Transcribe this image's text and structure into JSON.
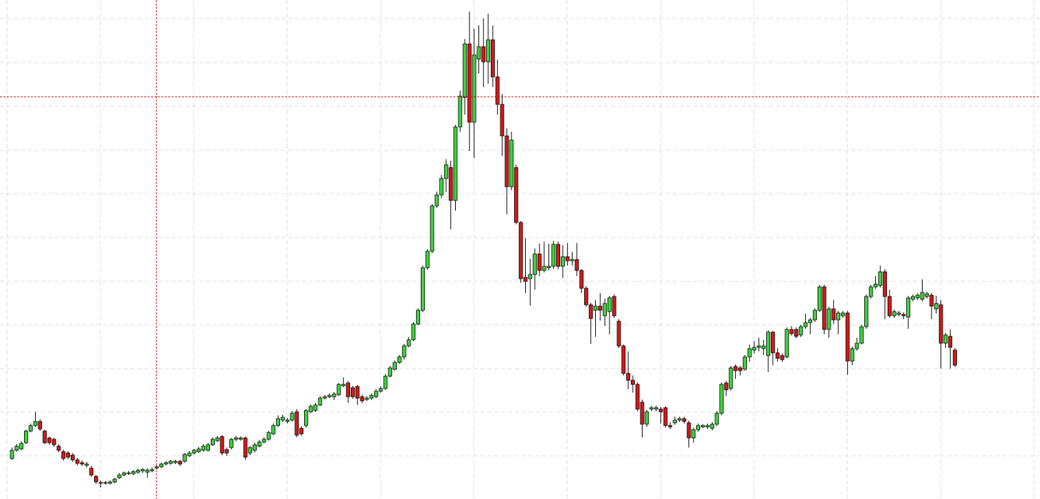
{
  "chart_data": {
    "type": "candlestick",
    "xlim": [
      -2.5,
      220.3
    ],
    "xticks": [
      -1,
      19,
      39,
      59,
      79,
      99,
      119,
      139,
      159,
      179,
      199,
      219
    ],
    "ylim": [
      0,
      727
    ],
    "yticks": [
      63,
      127,
      190,
      254,
      317,
      381,
      445,
      508,
      572,
      636,
      700
    ],
    "grid": true,
    "grid_color": "#dddddd",
    "up_color": "#3fd13f",
    "down_color": "#d11a1a",
    "crosshair": {
      "x": 31,
      "y": 586,
      "color": "#cc0000"
    },
    "open": [
      59,
      71,
      73,
      82,
      99,
      107,
      113,
      99,
      89,
      87,
      77,
      69,
      67,
      64,
      57,
      53,
      49,
      45,
      33,
      23,
      23,
      23,
      25,
      31,
      35,
      37,
      37,
      39,
      41,
      39,
      41,
      45,
      47,
      51,
      52,
      53,
      55,
      55,
      63,
      67,
      69,
      71,
      71,
      79,
      85,
      91,
      72,
      75,
      87,
      87,
      89,
      67,
      71,
      77,
      83,
      87,
      95,
      107,
      115,
      113,
      115,
      127,
      103,
      107,
      127,
      129,
      137,
      147,
      149,
      149,
      152,
      165,
      169,
      162,
      164,
      149,
      145,
      147,
      149,
      157,
      161,
      179,
      189,
      199,
      207,
      223,
      232,
      255,
      275,
      337,
      361,
      427,
      443,
      467,
      483,
      435,
      542,
      585,
      663,
      549,
      641,
      659,
      637,
      669,
      615,
      575,
      529,
      455,
      483,
      403,
      323,
      321,
      327,
      357,
      333,
      337,
      339,
      371,
      339,
      353,
      347,
      349,
      333,
      307,
      283,
      275,
      281,
      267,
      273,
      295,
      259,
      223,
      183,
      173,
      167,
      141,
      109,
      131,
      131,
      131,
      133,
      107,
      111,
      115,
      117,
      111,
      89,
      101,
      105,
      105,
      103,
      109,
      125,
      169,
      161,
      193,
      191,
      189,
      207,
      217,
      221,
      219,
      209,
      243,
      213,
      209,
      207,
      247,
      247,
      239,
      251,
      257,
      261,
      275,
      309,
      247,
      277,
      261,
      267,
      271,
      201,
      219,
      227,
      251,
      295,
      309,
      311,
      331,
      295,
      267,
      269,
      269,
      265,
      291,
      293,
      291,
      295,
      297,
      277,
      283,
      227,
      237,
      217
    ],
    "high": [
      75,
      80,
      84,
      101,
      110,
      127,
      116,
      101,
      91,
      89,
      80,
      72,
      70,
      67,
      60,
      56,
      54,
      48,
      35,
      27,
      26,
      27,
      31,
      38,
      40,
      41,
      42,
      44,
      45,
      45,
      46,
      49,
      53,
      55,
      57,
      57,
      57,
      67,
      70,
      73,
      76,
      80,
      82,
      90,
      92,
      93,
      75,
      89,
      92,
      91,
      91,
      77,
      82,
      86,
      90,
      99,
      110,
      122,
      123,
      118,
      128,
      131,
      106,
      131,
      138,
      140,
      150,
      152,
      154,
      156,
      169,
      177,
      172,
      165,
      166,
      152,
      150,
      154,
      160,
      164,
      182,
      194,
      202,
      210,
      226,
      236,
      258,
      278,
      340,
      364,
      430,
      448,
      472,
      495,
      493,
      545,
      595,
      670,
      710,
      685,
      690,
      700,
      707,
      690,
      640,
      590,
      540,
      535,
      487,
      405,
      380,
      350,
      365,
      372,
      375,
      372,
      376,
      375,
      370,
      373,
      360,
      373,
      335,
      310,
      286,
      290,
      300,
      292,
      296,
      298,
      262,
      225,
      215,
      180,
      170,
      145,
      130,
      136,
      136,
      134,
      135,
      112,
      120,
      120,
      120,
      114,
      104,
      110,
      109,
      110,
      112,
      128,
      170,
      172,
      194,
      196,
      194,
      210,
      225,
      230,
      235,
      232,
      246,
      245,
      220,
      212,
      250,
      252,
      250,
      254,
      270,
      264,
      278,
      312,
      312,
      280,
      290,
      274,
      274,
      274,
      222,
      235,
      254,
      298,
      312,
      325,
      340,
      335,
      305,
      276,
      274,
      272,
      296,
      298,
      300,
      320,
      302,
      300,
      296,
      290,
      242,
      247,
      220
    ],
    "low": [
      57,
      69,
      71,
      80,
      97,
      105,
      99,
      80,
      79,
      76,
      68,
      56,
      58,
      54,
      49,
      48,
      46,
      32,
      22,
      17,
      21,
      21,
      23,
      29,
      33,
      35,
      35,
      37,
      38,
      31,
      39,
      43,
      45,
      49,
      50,
      51,
      48,
      53,
      61,
      65,
      67,
      69,
      69,
      77,
      83,
      64,
      63,
      72,
      84,
      85,
      57,
      64,
      68,
      75,
      81,
      85,
      93,
      105,
      112,
      110,
      113,
      90,
      92,
      104,
      125,
      127,
      135,
      145,
      147,
      144,
      150,
      163,
      140,
      146,
      137,
      140,
      143,
      144,
      147,
      155,
      159,
      177,
      187,
      197,
      203,
      221,
      230,
      253,
      272,
      334,
      358,
      424,
      438,
      447,
      393,
      420,
      535,
      560,
      507,
      497,
      620,
      600,
      605,
      600,
      560,
      500,
      415,
      450,
      400,
      315,
      300,
      282,
      305,
      325,
      330,
      333,
      335,
      335,
      322,
      340,
      340,
      325,
      300,
      280,
      226,
      236,
      260,
      252,
      240,
      264,
      220,
      180,
      160,
      155,
      128,
      90,
      105,
      128,
      128,
      110,
      104,
      102,
      108,
      112,
      110,
      75,
      82,
      98,
      103,
      102,
      100,
      106,
      122,
      150,
      158,
      175,
      180,
      187,
      200,
      212,
      215,
      210,
      185,
      195,
      200,
      200,
      205,
      238,
      234,
      236,
      248,
      240,
      258,
      272,
      240,
      235,
      255,
      240,
      264,
      181,
      195,
      216,
      225,
      248,
      292,
      306,
      308,
      262,
      264,
      264,
      266,
      262,
      248,
      288,
      290,
      288,
      292,
      262,
      270,
      190,
      220,
      190,
      192
    ],
    "close": [
      71,
      77,
      81,
      99,
      107,
      113,
      102,
      82,
      82,
      79,
      71,
      59,
      61,
      57,
      52,
      51,
      51,
      35,
      25,
      24,
      24,
      25,
      29,
      35,
      38,
      38,
      40,
      42,
      43,
      42,
      43,
      47,
      51,
      53,
      55,
      55,
      51,
      65,
      67,
      71,
      73,
      77,
      79,
      87,
      89,
      67,
      67,
      87,
      89,
      89,
      61,
      75,
      79,
      83,
      87,
      97,
      107,
      117,
      119,
      115,
      125,
      93,
      95,
      129,
      135,
      137,
      147,
      149,
      151,
      153,
      167,
      167,
      149,
      149,
      147,
      143,
      147,
      151,
      157,
      161,
      179,
      191,
      199,
      207,
      223,
      232,
      255,
      275,
      337,
      361,
      427,
      443,
      467,
      487,
      435,
      542,
      587,
      663,
      549,
      647,
      659,
      637,
      669,
      615,
      575,
      529,
      455,
      523,
      403,
      321,
      317,
      327,
      357,
      333,
      339,
      339,
      371,
      339,
      353,
      347,
      349,
      333,
      307,
      283,
      263,
      281,
      275,
      285,
      293,
      267,
      223,
      183,
      173,
      167,
      131,
      109,
      127,
      133,
      133,
      127,
      107,
      105,
      115,
      117,
      113,
      89,
      101,
      107,
      107,
      107,
      109,
      125,
      167,
      159,
      191,
      187,
      187,
      207,
      219,
      221,
      223,
      223,
      243,
      213,
      205,
      203,
      247,
      241,
      237,
      251,
      257,
      261,
      275,
      309,
      247,
      277,
      261,
      271,
      271,
      201,
      219,
      227,
      251,
      295,
      309,
      313,
      331,
      295,
      267,
      273,
      271,
      267,
      293,
      295,
      297,
      301,
      299,
      281,
      285,
      227,
      239,
      221,
      195
    ]
  }
}
